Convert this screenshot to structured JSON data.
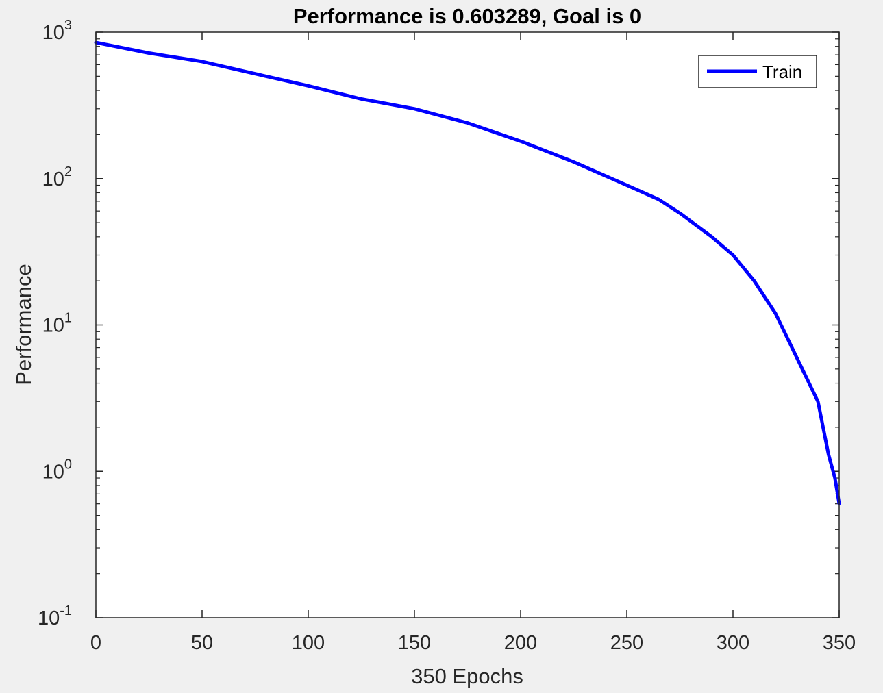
{
  "chart_data": {
    "type": "line",
    "title": "Performance is 0.603289, Goal is 0",
    "xlabel": "350 Epochs",
    "ylabel": "Performance",
    "xlim": [
      0,
      350
    ],
    "ylim": [
      0.1,
      1000
    ],
    "yscale": "log",
    "xticks": [
      0,
      50,
      100,
      150,
      200,
      250,
      300,
      350
    ],
    "xtick_labels": [
      "0",
      "50",
      "100",
      "150",
      "200",
      "250",
      "300",
      "350"
    ],
    "yticks": [
      {
        "value": 0.1,
        "base": "10",
        "exp": "-1"
      },
      {
        "value": 1,
        "base": "10",
        "exp": "0"
      },
      {
        "value": 10,
        "base": "10",
        "exp": "1"
      },
      {
        "value": 100,
        "base": "10",
        "exp": "2"
      },
      {
        "value": 1000,
        "base": "10",
        "exp": "3"
      }
    ],
    "grid": false,
    "legend_position": "top-right",
    "series": [
      {
        "name": "Train",
        "color": "#0000ff",
        "x": [
          0,
          25,
          50,
          75,
          100,
          125,
          150,
          175,
          200,
          225,
          250,
          265,
          275,
          290,
          300,
          310,
          320,
          330,
          340,
          345,
          348,
          350
        ],
        "y": [
          850,
          720,
          630,
          520,
          430,
          350,
          300,
          240,
          180,
          130,
          90,
          72,
          58,
          40,
          30,
          20,
          12,
          6,
          3,
          1.3,
          0.9,
          0.603289
        ]
      }
    ]
  }
}
